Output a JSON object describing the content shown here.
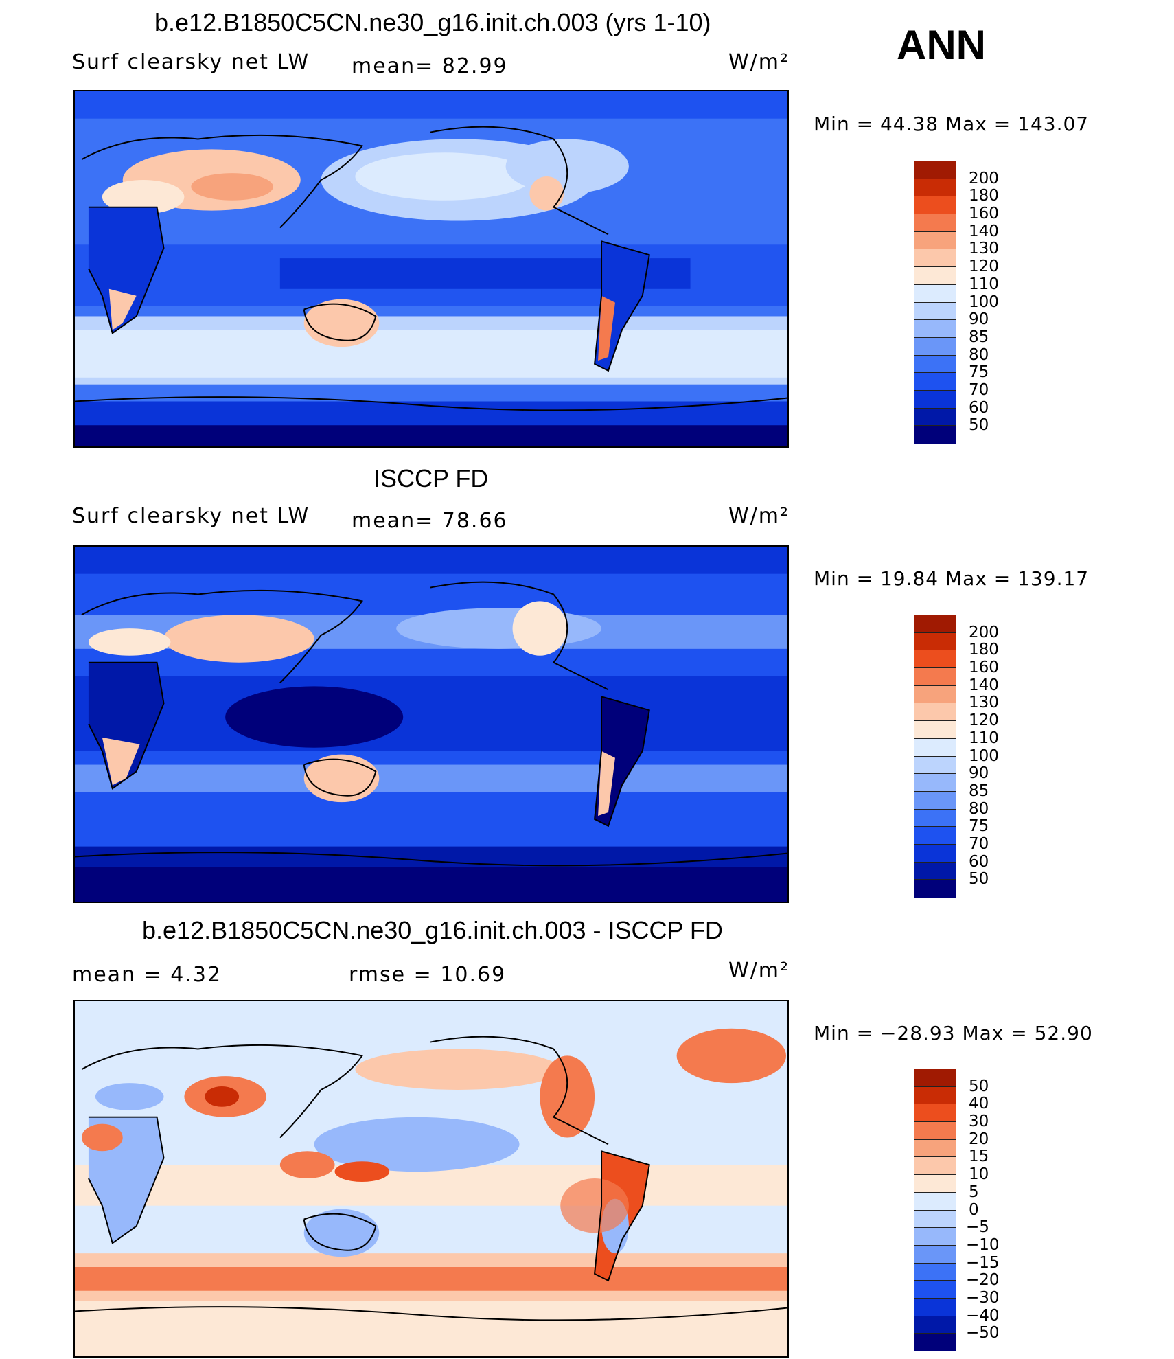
{
  "season": "ANN",
  "palette_abs": [
    "#00007a",
    "#0018a8",
    "#0a34d8",
    "#1e52f0",
    "#3c72f6",
    "#6a96f8",
    "#97b8fb",
    "#bcd4fd",
    "#dcebfe",
    "#fde8d6",
    "#fcc8ab",
    "#f7a37c",
    "#f47a4e",
    "#ec4e1e",
    "#c92c05",
    "#a01a02",
    "#7a0000"
  ],
  "panels": [
    {
      "title": "b.e12.B1850C5CN.ne30_g16.init.ch.003 (yrs 1-10)",
      "variable": "Surf clearsky net LW",
      "mean_text": "mean=  82.99",
      "units": "W/m²",
      "minmax_text": "Min =   44.38 Max = 143.07",
      "colorbar_labels": [
        "200",
        "180",
        "160",
        "140",
        "130",
        "120",
        "110",
        "100",
        "90",
        "85",
        "80",
        "75",
        "70",
        "60",
        "50"
      ]
    },
    {
      "title": "ISCCP FD",
      "variable": "Surf clearsky net LW",
      "mean_text": "mean=  78.66",
      "units": "W/m²",
      "minmax_text": "Min =   19.84 Max = 139.17",
      "colorbar_labels": [
        "200",
        "180",
        "160",
        "140",
        "130",
        "120",
        "110",
        "100",
        "90",
        "85",
        "80",
        "75",
        "70",
        "60",
        "50"
      ]
    },
    {
      "title": "b.e12.B1850C5CN.ne30_g16.init.ch.003 - ISCCP FD",
      "mean_text": "mean =     4.32",
      "rmse_text": "rmse =    10.69",
      "units": "W/m²",
      "minmax_text": "Min = −28.93 Max =   52.90",
      "colorbar_labels": [
        "50",
        "40",
        "30",
        "20",
        "15",
        "10",
        "5",
        "0",
        "−5",
        "−10",
        "−15",
        "−20",
        "−30",
        "−40",
        "−50"
      ]
    }
  ]
}
